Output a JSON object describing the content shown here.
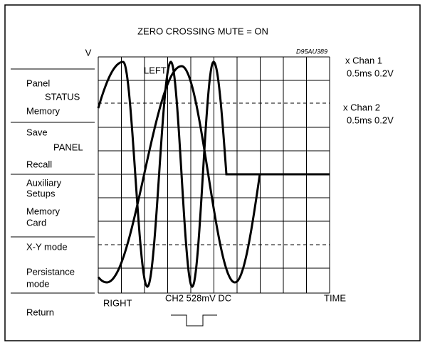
{
  "title": "ZERO CROSSING MUTE = ON",
  "figure_id": "D95AU389",
  "axis": {
    "y": "V",
    "x": "TIME"
  },
  "traces": {
    "left": "LEFT",
    "right": "RIGHT"
  },
  "menu": [
    {
      "lines": [
        "Panel",
        "STATUS",
        "Memory"
      ]
    },
    {
      "lines": [
        "Save",
        "PANEL",
        "Recall"
      ]
    },
    {
      "lines": [
        "Auxiliary",
        "Setups",
        "Memory",
        "Card"
      ]
    },
    {
      "lines": [
        "X-Y mode",
        "Persistance",
        "mode"
      ]
    },
    {
      "lines": [
        "Return"
      ]
    }
  ],
  "channels": [
    {
      "name": "x Chan 1",
      "setting": "0.5ms 0.2V"
    },
    {
      "name": "x Chan 2",
      "setting": "0.5ms 0.2V"
    }
  ],
  "trigger": "CH2 528mV DC"
}
